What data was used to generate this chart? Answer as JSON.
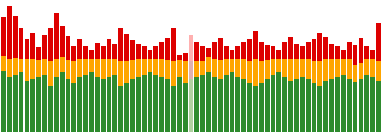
{
  "n_bars": 65,
  "colors_green": "#2e8b2e",
  "colors_orange": "#ffa500",
  "colors_red": "#dd0000",
  "special_bar_idx": 32,
  "special_green": "#b0d0a0",
  "special_orange": "#e0b0b0",
  "special_red": "#ffb0b0",
  "background_color": "#ffffff",
  "bar_width": 0.82,
  "green_vals": [
    55,
    50,
    52,
    54,
    46,
    48,
    50,
    52,
    42,
    50,
    54,
    48,
    44,
    50,
    52,
    54,
    50,
    48,
    50,
    52,
    42,
    44,
    48,
    50,
    52,
    54,
    52,
    50,
    48,
    42,
    50,
    44,
    48,
    50,
    52,
    54,
    50,
    48,
    52,
    54,
    50,
    48,
    44,
    42,
    44,
    48,
    52,
    54,
    50,
    46,
    48,
    50,
    48,
    44,
    42,
    46,
    48,
    50,
    52,
    48,
    45,
    48,
    52,
    50,
    46
  ],
  "orange_vals": [
    14,
    16,
    15,
    12,
    20,
    18,
    15,
    14,
    22,
    16,
    14,
    17,
    20,
    16,
    14,
    12,
    16,
    18,
    16,
    14,
    22,
    20,
    17,
    16,
    14,
    12,
    14,
    16,
    17,
    22,
    15,
    20,
    16,
    14,
    12,
    14,
    16,
    17,
    14,
    12,
    16,
    18,
    20,
    24,
    20,
    17,
    14,
    12,
    16,
    20,
    18,
    16,
    18,
    20,
    22,
    20,
    18,
    16,
    14,
    18,
    16,
    15,
    14,
    16,
    18
  ],
  "red_vals": [
    35,
    48,
    38,
    28,
    18,
    24,
    12,
    22,
    30,
    42,
    28,
    22,
    14,
    18,
    12,
    8,
    15,
    12,
    18,
    14,
    30,
    25,
    18,
    14,
    12,
    8,
    12,
    16,
    20,
    30,
    5,
    8,
    24,
    18,
    14,
    8,
    16,
    20,
    12,
    8,
    12,
    16,
    20,
    26,
    18,
    14,
    12,
    8,
    16,
    20,
    14,
    12,
    16,
    20,
    26,
    20,
    14,
    12,
    8,
    16,
    18,
    22,
    12,
    8,
    35
  ]
}
